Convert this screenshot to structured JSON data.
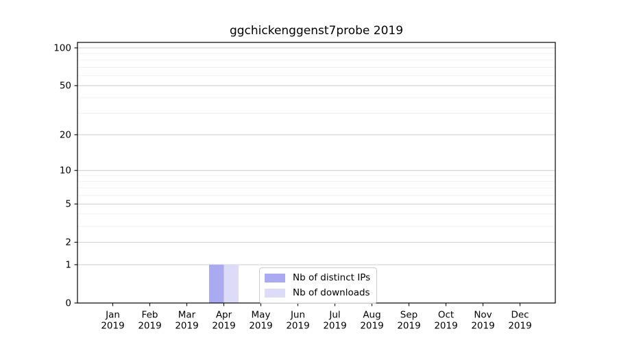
{
  "figure": {
    "background": "#ffffff"
  },
  "chart_data": {
    "type": "bar",
    "title": "ggchickenggenst7probe 2019",
    "categories": [
      "Jan",
      "Feb",
      "Mar",
      "Apr",
      "May",
      "Jun",
      "Jul",
      "Aug",
      "Sep",
      "Oct",
      "Nov",
      "Dec"
    ],
    "x_year_label": "2019",
    "series": [
      {
        "name": "Nb of distinct IPs",
        "color": "#aaaaf0",
        "values": [
          0,
          0,
          0,
          1,
          0,
          0,
          0,
          0,
          0,
          0,
          0,
          0
        ]
      },
      {
        "name": "Nb of downloads",
        "color": "#dcdcf8",
        "values": [
          0,
          0,
          0,
          1,
          0,
          0,
          0,
          0,
          0,
          0,
          0,
          0
        ]
      }
    ],
    "xlabel": "",
    "ylabel": "",
    "y_scale": "log1p",
    "ylim": [
      0,
      100
    ],
    "yticks": [
      0,
      1,
      2,
      5,
      10,
      20,
      50,
      100
    ],
    "minor_yticks": [
      3,
      4,
      6,
      7,
      8,
      9,
      30,
      40,
      60,
      70,
      80,
      90
    ],
    "grid": "horizontal",
    "legend_position": "lower-center-inside",
    "colors": {
      "major_grid": "#cccccc",
      "minor_grid": "#f0f0f0",
      "axis": "#000000",
      "text": "#000000",
      "legend_border": "#cccccc"
    }
  }
}
